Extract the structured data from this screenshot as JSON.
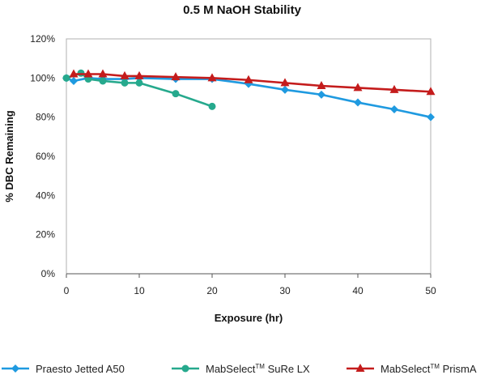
{
  "chart_data": {
    "type": "line",
    "title": "0.5 M NaOH Stability",
    "xlabel": "Exposure (hr)",
    "ylabel": "% DBC Remaining",
    "xlim": [
      0,
      50
    ],
    "ylim": [
      0,
      120
    ],
    "x_ticks": [
      "0",
      "10",
      "20",
      "30",
      "40",
      "50"
    ],
    "x_tick_values": [
      0,
      10,
      20,
      30,
      40,
      50
    ],
    "y_ticks": [
      "0%",
      "20%",
      "40%",
      "60%",
      "80%",
      "100%",
      "120%"
    ],
    "y_tick_values": [
      0,
      20,
      40,
      60,
      80,
      100,
      120
    ],
    "grid": false,
    "legend_position": "bottom",
    "series": [
      {
        "name": "Praesto Jetted A50",
        "color": "#1f9ae0",
        "marker": "diamond",
        "points": [
          [
            0,
            100
          ],
          [
            1,
            98.5
          ],
          [
            3,
            100
          ],
          [
            5,
            99.5
          ],
          [
            8,
            99.5
          ],
          [
            10,
            100
          ],
          [
            15,
            99.5
          ],
          [
            20,
            99.5
          ],
          [
            25,
            97
          ],
          [
            30,
            94
          ],
          [
            35,
            91.5
          ],
          [
            40,
            87.5
          ],
          [
            45,
            84
          ],
          [
            50,
            80
          ]
        ]
      },
      {
        "name": "MabSelect",
        "name_sup": "TM",
        "name_suffix": " SuRe LX",
        "color": "#26a98d",
        "marker": "circle",
        "points": [
          [
            0,
            100
          ],
          [
            2,
            102.5
          ],
          [
            3,
            99.5
          ],
          [
            5,
            98.5
          ],
          [
            8,
            97.5
          ],
          [
            10,
            97.5
          ],
          [
            15,
            92
          ],
          [
            20,
            85.5
          ]
        ]
      },
      {
        "name": "MabSelect",
        "name_sup": "TM",
        "name_suffix": " PrismA",
        "color": "#c41c1c",
        "marker": "triangle",
        "points": [
          [
            1,
            102
          ],
          [
            3,
            102
          ],
          [
            5,
            102
          ],
          [
            8,
            101
          ],
          [
            10,
            101
          ],
          [
            15,
            100.5
          ],
          [
            20,
            100
          ],
          [
            25,
            99
          ],
          [
            30,
            97.5
          ],
          [
            35,
            96
          ],
          [
            40,
            95
          ],
          [
            45,
            94
          ],
          [
            50,
            93
          ]
        ]
      }
    ]
  }
}
